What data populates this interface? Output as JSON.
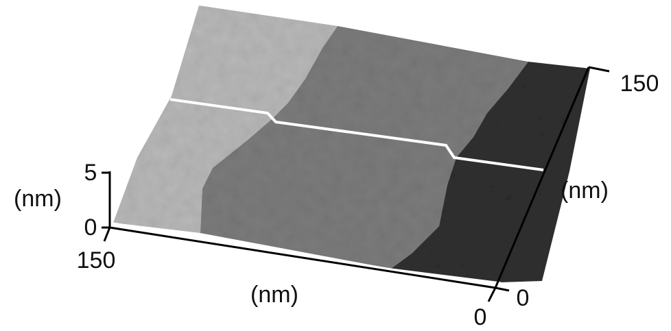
{
  "z_axis": {
    "label": "(nm)",
    "ticks": [
      0,
      5
    ]
  },
  "x_axis": {
    "label": "(nm)",
    "ticks": [
      150,
      0
    ]
  },
  "y_axis": {
    "label": "(nm)",
    "ticks": [
      0,
      150
    ]
  }
}
